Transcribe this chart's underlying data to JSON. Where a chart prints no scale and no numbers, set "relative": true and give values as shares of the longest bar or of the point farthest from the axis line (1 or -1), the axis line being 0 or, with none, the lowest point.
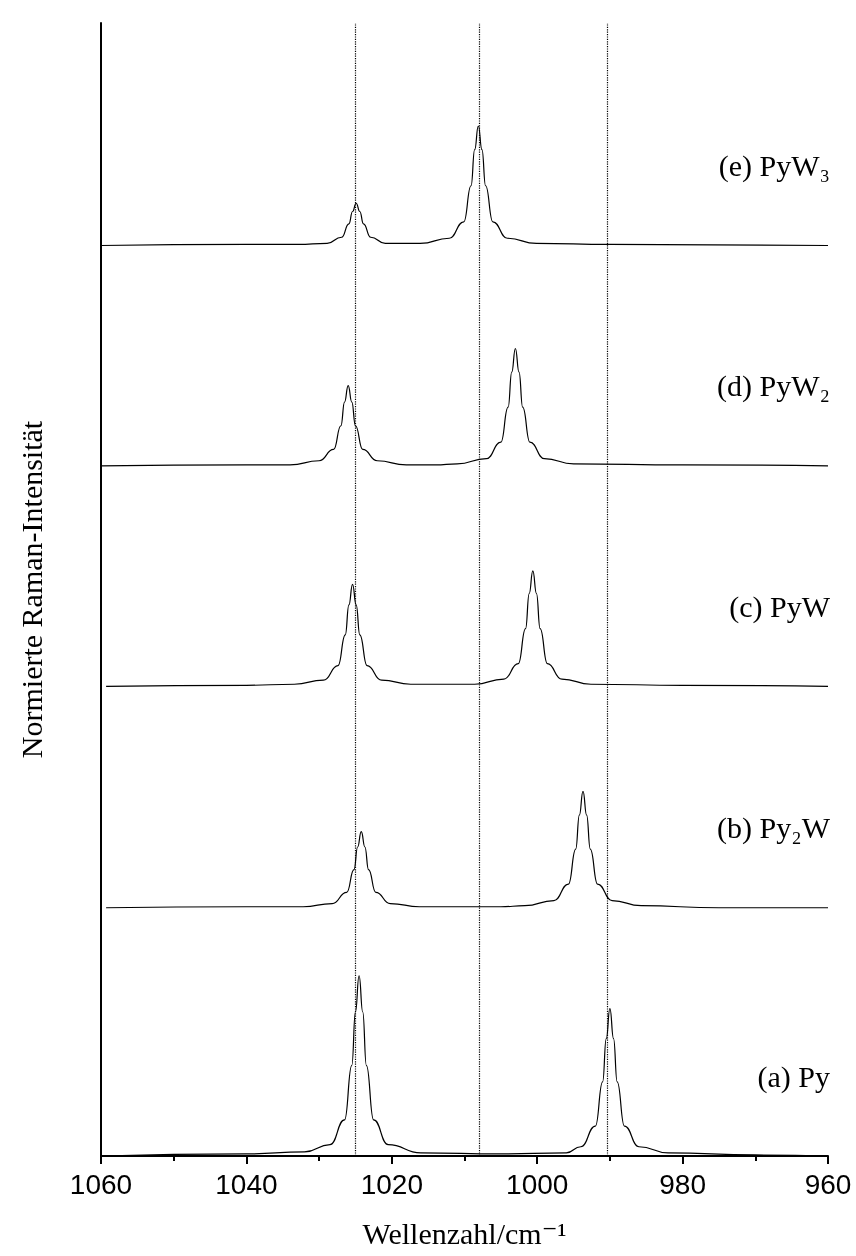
{
  "chart_data": {
    "type": "line",
    "relative": true,
    "xlabel": "Wellenzahl/cm⁻¹",
    "ylabel": "Normierte Raman-Intensität",
    "xlim": [
      1060,
      960
    ],
    "xticks": [
      1060,
      1040,
      1020,
      1000,
      980,
      960
    ],
    "marker": "none",
    "line_style": "solid",
    "ref_lines": [
      {
        "axis": "x",
        "value": 1025,
        "line_style": "dotted",
        "color": "#000000"
      },
      {
        "axis": "x",
        "value": 1008,
        "line_style": "dotted",
        "color": "#000000"
      },
      {
        "axis": "x",
        "value": 990.3,
        "line_style": "dotted",
        "color": "#000000"
      }
    ],
    "series": [
      {
        "name": "(a) Py",
        "color": "#000000",
        "x": [
          1060,
          1040,
          1032,
          1028.5,
          1026.5,
          1025.5,
          1025,
          1024.5,
          1024,
          1023.5,
          1022.5,
          1020.5,
          1016,
          1005,
          996,
          994,
          992,
          991,
          990.5,
          990,
          989.5,
          989,
          988,
          986,
          982,
          970,
          960
        ],
        "values": [
          0,
          0.002,
          0.004,
          0.011,
          0.035,
          0.088,
          0.14,
          0.175,
          0.14,
          0.088,
          0.035,
          0.011,
          0.003,
          0.002,
          0.003,
          0.009,
          0.029,
          0.072,
          0.114,
          0.143,
          0.114,
          0.072,
          0.029,
          0.009,
          0.003,
          0.001,
          0
        ]
      },
      {
        "name": "(b) Py₂W",
        "color": "#000000",
        "x": [
          1059.3,
          1040,
          1032.2,
          1028.2,
          1026.2,
          1025.2,
          1024.7,
          1024.2,
          1023.7,
          1023.2,
          1022.2,
          1020.2,
          1016.2,
          1005,
          1001.7,
          997.7,
          995.7,
          994.7,
          994.2,
          993.7,
          993.2,
          992.7,
          991.7,
          989.7,
          985.7,
          975,
          960
        ],
        "values": [
          0.241,
          0.242,
          0.242,
          0.245,
          0.256,
          0.278,
          0.3,
          0.315,
          0.3,
          0.278,
          0.256,
          0.245,
          0.242,
          0.242,
          0.243,
          0.248,
          0.264,
          0.298,
          0.331,
          0.354,
          0.331,
          0.298,
          0.264,
          0.248,
          0.243,
          0.241,
          0.241
        ]
      },
      {
        "name": "(c) PyW",
        "color": "#000000",
        "x": [
          1059.3,
          1040,
          1033.4,
          1029.4,
          1027.4,
          1026.4,
          1025.9,
          1025.4,
          1024.9,
          1024.4,
          1023.4,
          1021.4,
          1017.4,
          1012,
          1008.6,
          1004.6,
          1002.6,
          1001.6,
          1001.1,
          1000.6,
          1000.1,
          999.6,
          998.6,
          996.6,
          992.6,
          980,
          960
        ],
        "values": [
          0.456,
          0.457,
          0.458,
          0.462,
          0.476,
          0.506,
          0.535,
          0.555,
          0.535,
          0.506,
          0.476,
          0.462,
          0.458,
          0.458,
          0.458,
          0.463,
          0.478,
          0.512,
          0.546,
          0.568,
          0.546,
          0.512,
          0.478,
          0.463,
          0.458,
          0.457,
          0.456
        ]
      },
      {
        "name": "(d) PyW₂",
        "color": "#000000",
        "x": [
          1060,
          1040,
          1034,
          1030,
          1028,
          1027,
          1026.5,
          1026,
          1025.5,
          1025,
          1024,
          1022,
          1018,
          1014,
          1011,
          1007,
          1005,
          1004,
          1003.5,
          1003,
          1002.5,
          1002,
          1001,
          999,
          995,
          980,
          960
        ],
        "values": [
          0.67,
          0.671,
          0.671,
          0.675,
          0.686,
          0.709,
          0.732,
          0.748,
          0.732,
          0.709,
          0.686,
          0.675,
          0.671,
          0.671,
          0.672,
          0.677,
          0.693,
          0.727,
          0.761,
          0.784,
          0.761,
          0.727,
          0.693,
          0.677,
          0.672,
          0.671,
          0.67
        ]
      },
      {
        "name": "(e) PyW₃",
        "color": "#000000",
        "x": [
          1060,
          1040,
          1032.9,
          1028.9,
          1026.9,
          1025.9,
          1025.4,
          1024.9,
          1024.4,
          1023.9,
          1022.9,
          1020.9,
          1016.1,
          1012.1,
          1010.1,
          1009.1,
          1008.6,
          1008.1,
          1007.6,
          1007.1,
          1006.1,
          1004.1,
          1000.1,
          990,
          960
        ],
        "values": [
          0.884,
          0.885,
          0.885,
          0.886,
          0.892,
          0.905,
          0.917,
          0.925,
          0.917,
          0.905,
          0.892,
          0.886,
          0.886,
          0.891,
          0.907,
          0.942,
          0.977,
          1.0,
          0.977,
          0.942,
          0.907,
          0.891,
          0.886,
          0.885,
          0.884
        ]
      }
    ]
  }
}
